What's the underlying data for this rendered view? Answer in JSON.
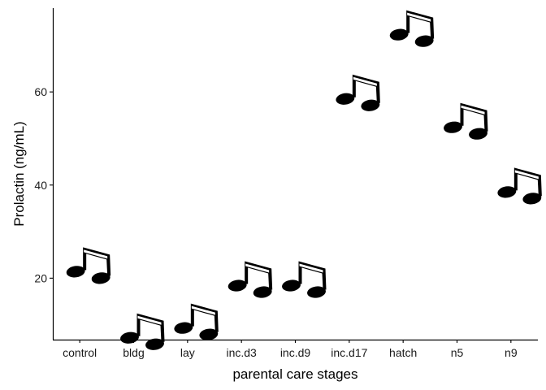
{
  "chart_data": {
    "type": "scatter",
    "marker": "music-note-icon",
    "title": "",
    "xlabel": "parental care stages",
    "ylabel": "Prolactin (ng/mL)",
    "categories": [
      "control",
      "bldg",
      "lay",
      "inc.d3",
      "inc.d9",
      "inc.d17",
      "hatch",
      "n5",
      "n9"
    ],
    "values": [
      21.4,
      7.2,
      9.3,
      18.4,
      18.4,
      58.5,
      72.3,
      52.4,
      38.5
    ],
    "y_ticks": [
      20,
      40,
      60
    ],
    "y_tick_labels": [
      "20",
      "40",
      "60"
    ],
    "ylim": [
      6.8,
      78
    ],
    "grid": false,
    "legend": "none"
  }
}
